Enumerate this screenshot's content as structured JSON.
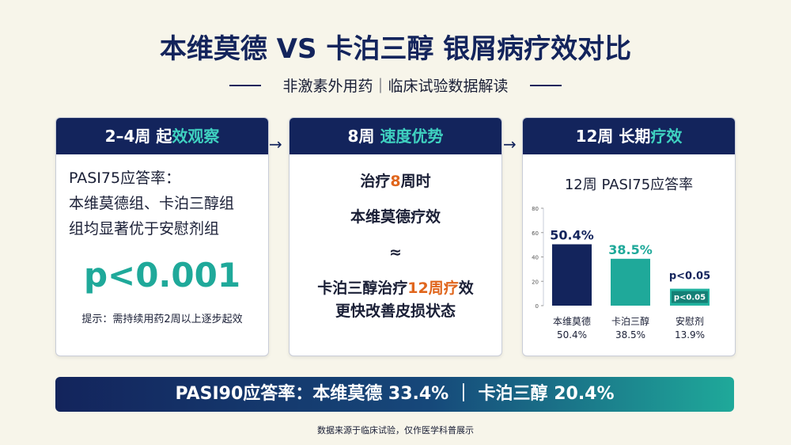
{
  "header": {
    "title": "本维莫德 VS 卡泊三醇 银屑病疗效对比",
    "subtitle": "非激素外用药｜临床试验数据解读"
  },
  "panels": [
    {
      "heading": [
        {
          "text": "2–4周 起",
          "color": "#ffffff"
        },
        {
          "text": "效观察",
          "color": "#3fd1c0"
        }
      ],
      "lines": [
        [
          {
            "text": "PASI75应答率：",
            "color": "#1a1f36"
          }
        ],
        [
          {
            "text": "本维莫德组、卡泊三醇组",
            "color": "#1a1f36"
          }
        ],
        [
          {
            "text": "组均显著优于安慰剂组",
            "color": "#1a1f36"
          }
        ]
      ],
      "highlight": "p<0.001",
      "note": "提示：需持续用药2周以上逐步起效"
    },
    {
      "heading": [
        {
          "text": "8周 ",
          "color": "#ffffff"
        },
        {
          "text": "速度优势",
          "color": "#3fd1c0"
        }
      ],
      "lines": [
        [
          {
            "text": "治疗",
            "color": "#1a1f36"
          },
          {
            "text": "8",
            "color": "#e0661d"
          },
          {
            "text": "周时",
            "color": "#1a1f36"
          }
        ],
        [
          {
            "text": "本维莫德疗效",
            "color": "#1a1f36"
          }
        ],
        [
          {
            "text": "≈",
            "color": "#1a1f36"
          }
        ],
        [
          {
            "text": "卡泊三醇治疗",
            "color": "#1a1f36"
          },
          {
            "text": "12周疗",
            "color": "#e0661d"
          },
          {
            "text": "效",
            "color": "#1a1f36"
          }
        ],
        [
          {
            "text": "更快改善皮损状态",
            "color": "#1a1f36"
          }
        ]
      ]
    },
    {
      "heading": [
        {
          "text": "12周 长期",
          "color": "#ffffff"
        },
        {
          "text": "疗效",
          "color": "#3fd1c0"
        }
      ]
    }
  ],
  "chart_data": {
    "type": "bar",
    "title": "12周 PASI75应答率",
    "categories": [
      "本维莫德",
      "卡泊三醇",
      "安慰剂"
    ],
    "values": [
      50.4,
      38.5,
      13.9
    ],
    "value_labels": [
      "50.4%",
      "38.5%",
      "13.9%"
    ],
    "colors": [
      "#13245c",
      "#1fa99a",
      "#22b3a0"
    ],
    "label_colors": [
      "#13245c",
      "#1fa99a",
      "#13245c"
    ],
    "annotation": "p<0.05",
    "ylim": [
      0,
      80
    ],
    "yticks": [
      0,
      20,
      40,
      60,
      80
    ]
  },
  "banner": "PASI90应答率：本维莫德 33.4% ｜ 卡泊三醇 20.4%",
  "footer": "数据来源于临床试验，仅作医学科普展示"
}
